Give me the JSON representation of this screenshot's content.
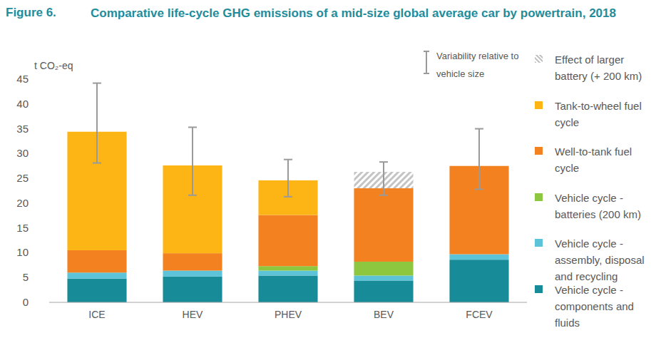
{
  "chart_data": {
    "type": "bar",
    "stacked": true,
    "grid": false,
    "legend": "right",
    "figure_number": "Figure 6.",
    "title": "Comparative life-cycle GHG emissions of a mid-size global average car by powertrain, 2018",
    "y_label": "t CO₂-eq",
    "categories": [
      "ICE",
      "HEV",
      "PHEV",
      "BEV",
      "FCEV"
    ],
    "ylim": [
      0,
      45
    ],
    "yticks": [
      0,
      5,
      10,
      15,
      20,
      25,
      30,
      35,
      40,
      45
    ],
    "series": [
      {
        "name": "Vehicle cycle - components and fluids",
        "color": "#178b98",
        "values": [
          4.8,
          5.2,
          5.4,
          4.4,
          8.6
        ]
      },
      {
        "name": "Vehicle cycle - assembly, disposal and recycling",
        "color": "#5cc3d8",
        "values": [
          1.2,
          1.2,
          1.0,
          1.0,
          1.1
        ]
      },
      {
        "name": "Vehicle cycle - batteries (200 km)",
        "color": "#8dc63f",
        "values": [
          0,
          0,
          0.9,
          2.8,
          0
        ]
      },
      {
        "name": "Well-to-tank fuel cycle",
        "color": "#f38120",
        "values": [
          4.5,
          3.5,
          10.3,
          14.8,
          17.8
        ]
      },
      {
        "name": "Tank-to-wheel fuel cycle",
        "color": "#fdb515",
        "values": [
          23.9,
          17.7,
          7.0,
          0,
          0
        ]
      },
      {
        "name": "Effect of larger battery (+ 200 km)",
        "color": "#c4c4c4",
        "marker": "hatch",
        "values": [
          0,
          0,
          0,
          3.3,
          0
        ]
      }
    ],
    "error_label": "Variability relative to vehicle size",
    "error_low": [
      28.1,
      21.6,
      21.3,
      21.6,
      22.8
    ],
    "error_high": [
      44.2,
      35.3,
      28.8,
      28.3,
      35.0
    ]
  }
}
